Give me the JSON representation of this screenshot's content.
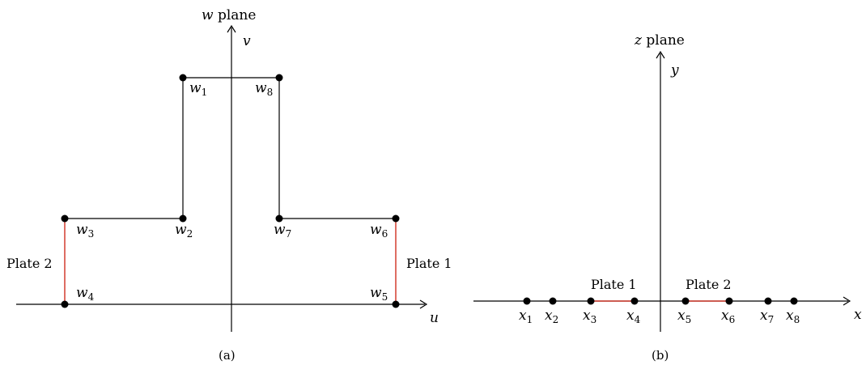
{
  "panel_a": {
    "plane_label": {
      "var": "w",
      "text": " plane"
    },
    "axis_labels": {
      "horizontal": "u",
      "vertical": "v"
    },
    "points": [
      {
        "base": "w",
        "sub": "1"
      },
      {
        "base": "w",
        "sub": "2"
      },
      {
        "base": "w",
        "sub": "3"
      },
      {
        "base": "w",
        "sub": "4"
      },
      {
        "base": "w",
        "sub": "5"
      },
      {
        "base": "w",
        "sub": "6"
      },
      {
        "base": "w",
        "sub": "7"
      },
      {
        "base": "w",
        "sub": "8"
      }
    ],
    "plate_labels": {
      "left": "Plate 2",
      "right": "Plate 1"
    },
    "caption": "(a)"
  },
  "panel_b": {
    "plane_label": {
      "var": "z",
      "text": " plane"
    },
    "axis_labels": {
      "horizontal": "x",
      "vertical": "y"
    },
    "points": [
      {
        "base": "x",
        "sub": "1"
      },
      {
        "base": "x",
        "sub": "2"
      },
      {
        "base": "x",
        "sub": "3"
      },
      {
        "base": "x",
        "sub": "4"
      },
      {
        "base": "x",
        "sub": "5"
      },
      {
        "base": "x",
        "sub": "6"
      },
      {
        "base": "x",
        "sub": "7"
      },
      {
        "base": "x",
        "sub": "8"
      }
    ],
    "plate_labels": {
      "first": "Plate 1",
      "second": "Plate 2"
    },
    "caption": "(b)"
  },
  "colors": {
    "line": "#000000",
    "plate": "#d23c2f",
    "point": "#000000"
  }
}
